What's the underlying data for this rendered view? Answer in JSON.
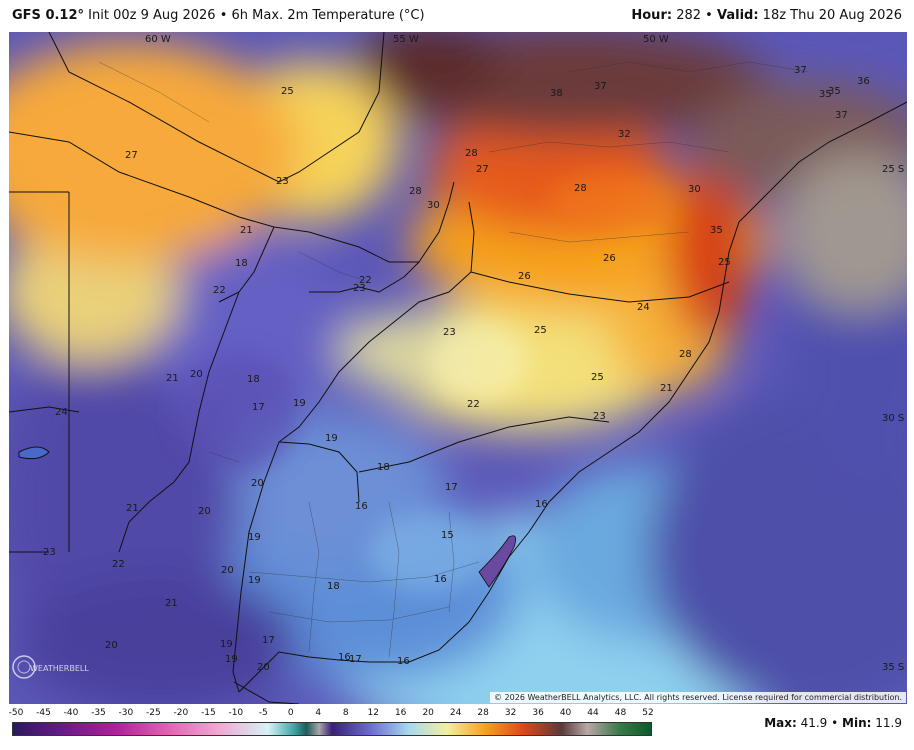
{
  "header": {
    "model": "GFS 0.12°",
    "init": "Init 00z 9 Aug 2026",
    "product": "6h Max. 2m Temperature (°C)",
    "hour_label": "Hour:",
    "hour_value": "282",
    "valid_label": "Valid:",
    "valid_value": "18z Thu 20 Aug 2026"
  },
  "map": {
    "longitude_labels": [
      "60 W",
      "55 W",
      "50 W"
    ],
    "latitude_labels": [
      "25 S",
      "30 S",
      "35 S"
    ],
    "temperature_labels": [
      {
        "value": "25"
      },
      {
        "value": "27"
      },
      {
        "value": "23"
      },
      {
        "value": "21"
      },
      {
        "value": "18"
      },
      {
        "value": "22"
      },
      {
        "value": "28"
      },
      {
        "value": "30"
      },
      {
        "value": "28"
      },
      {
        "value": "27"
      },
      {
        "value": "38"
      },
      {
        "value": "37"
      },
      {
        "value": "37"
      },
      {
        "value": "36"
      },
      {
        "value": "35"
      },
      {
        "value": "35"
      },
      {
        "value": "37"
      },
      {
        "value": "32"
      },
      {
        "value": "28"
      },
      {
        "value": "30"
      },
      {
        "value": "35"
      },
      {
        "value": "26"
      },
      {
        "value": "26"
      },
      {
        "value": "25"
      },
      {
        "value": "24"
      },
      {
        "value": "22"
      },
      {
        "value": "23"
      },
      {
        "value": "25"
      },
      {
        "value": "23"
      },
      {
        "value": "28"
      },
      {
        "value": "21"
      },
      {
        "value": "25"
      },
      {
        "value": "21"
      },
      {
        "value": "20"
      },
      {
        "value": "18"
      },
      {
        "value": "17"
      },
      {
        "value": "19"
      },
      {
        "value": "24"
      },
      {
        "value": "22"
      },
      {
        "value": "23"
      },
      {
        "value": "19"
      },
      {
        "value": "18"
      },
      {
        "value": "20"
      },
      {
        "value": "17"
      },
      {
        "value": "16"
      },
      {
        "value": "21"
      },
      {
        "value": "20"
      },
      {
        "value": "16"
      },
      {
        "value": "15"
      },
      {
        "value": "19"
      },
      {
        "value": "23"
      },
      {
        "value": "22"
      },
      {
        "value": "20"
      },
      {
        "value": "19"
      },
      {
        "value": "18"
      },
      {
        "value": "16"
      },
      {
        "value": "21"
      },
      {
        "value": "17"
      },
      {
        "value": "20"
      },
      {
        "value": "19"
      },
      {
        "value": "19"
      },
      {
        "value": "20"
      },
      {
        "value": "16"
      },
      {
        "value": "17"
      },
      {
        "value": "16"
      }
    ],
    "copyright": "© 2026 WeatherBELL Analytics, LLC. All rights reserved. License required for commercial distribution."
  },
  "legend": {
    "ticks": [
      "-50",
      "-45",
      "-40",
      "-35",
      "-30",
      "-25",
      "-20",
      "-15",
      "-10",
      "-5",
      "0",
      "4",
      "8",
      "12",
      "16",
      "20",
      "24",
      "28",
      "32",
      "36",
      "40",
      "44",
      "48",
      "52"
    ],
    "colors": {
      "cold": "#3a1f78",
      "mid": "#6b6bd0",
      "cool": "#a6d8ee",
      "mild": "#f3f0a0",
      "warm": "#f6a21c",
      "hot": "#e0461a",
      "extreme": "#5a3a3a"
    }
  },
  "stats": {
    "max_label": "Max:",
    "max_value": "41.9",
    "min_label": "Min:",
    "min_value": "11.9"
  },
  "logo_text": "WEATHERBELL"
}
